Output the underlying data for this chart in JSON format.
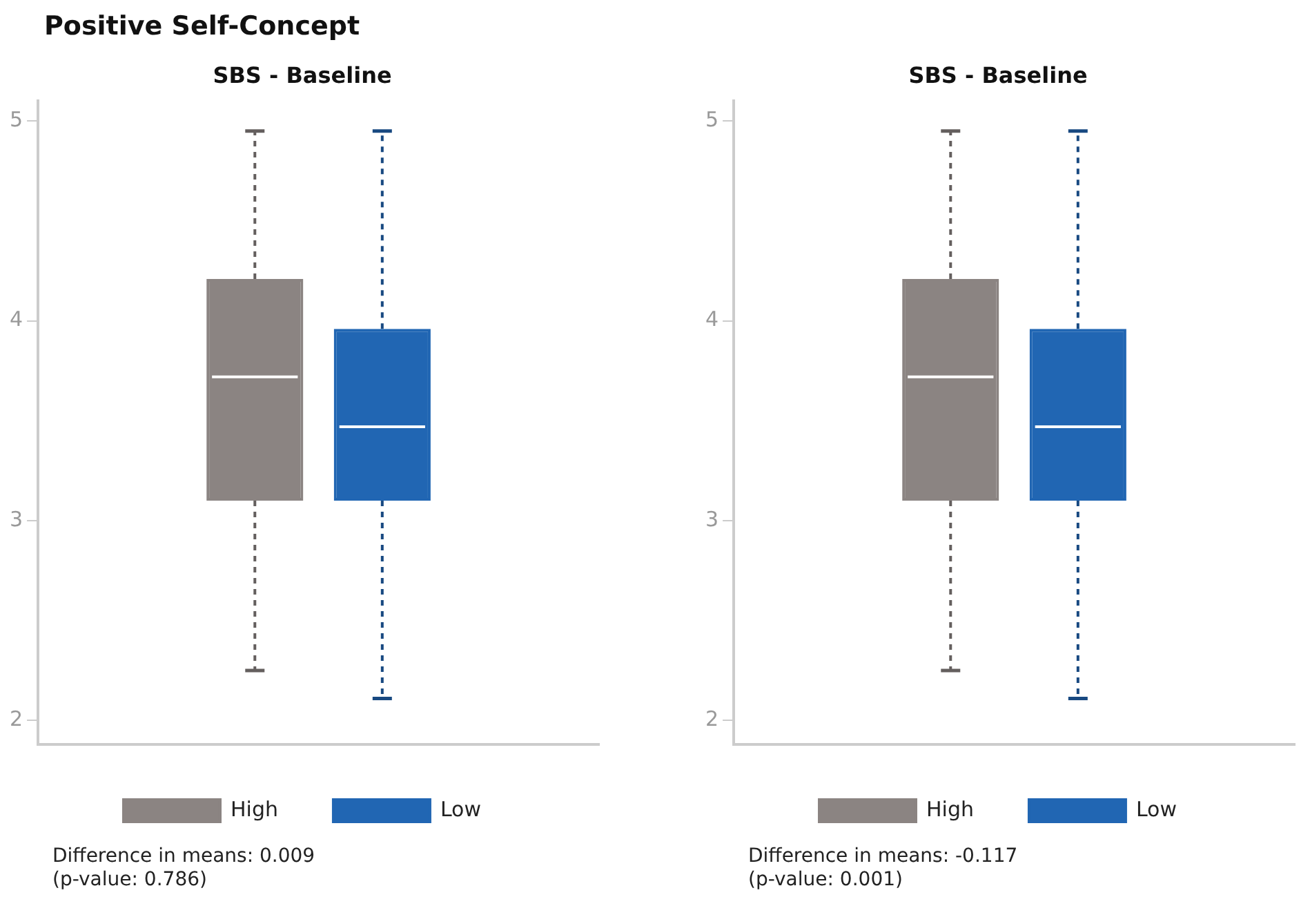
{
  "chart_data": [
    {
      "type": "box",
      "title": "Positive Self-Concept",
      "subtitle": "SBS - Baseline",
      "categories": [
        null
      ],
      "series": [
        {
          "name": "High",
          "color": "#8b8482",
          "boxes": [
            {
              "low": 2.25,
              "q1": 3.1,
              "median": 3.72,
              "q3": 4.21,
              "high": 4.95
            }
          ]
        },
        {
          "name": "Low",
          "color": "#2166b3",
          "boxes": [
            {
              "low": 2.11,
              "q1": 3.1,
              "median": 3.47,
              "q3": 3.96,
              "high": 4.95
            }
          ]
        }
      ],
      "ylim": [
        1.88,
        5.1
      ],
      "yticks": [
        2,
        3,
        4,
        5
      ],
      "grid": false,
      "legend": "bottom",
      "line_style": "dashed",
      "annotations": [
        "Difference in means: 0.009",
        "(p-value: 0.786)"
      ]
    },
    {
      "type": "box",
      "title": "SBS - Baseline",
      "categories": [
        null
      ],
      "series": [
        {
          "name": "High",
          "color": "#8b8482",
          "boxes": [
            {
              "low": 2.25,
              "q1": 3.1,
              "median": 3.72,
              "q3": 4.21,
              "high": 4.95
            }
          ]
        },
        {
          "name": "Low",
          "color": "#2166b3",
          "boxes": [
            {
              "low": 2.11,
              "q1": 3.1,
              "median": 3.47,
              "q3": 3.96,
              "high": 4.95
            }
          ]
        }
      ],
      "ylim": [
        1.88,
        5.1
      ],
      "yticks": [
        2,
        3,
        4,
        5
      ],
      "grid": false,
      "legend": "bottom",
      "line_style": "dashed",
      "annotations": [
        "Difference in means: -0.117",
        "(p-value: 0.001)"
      ]
    }
  ]
}
